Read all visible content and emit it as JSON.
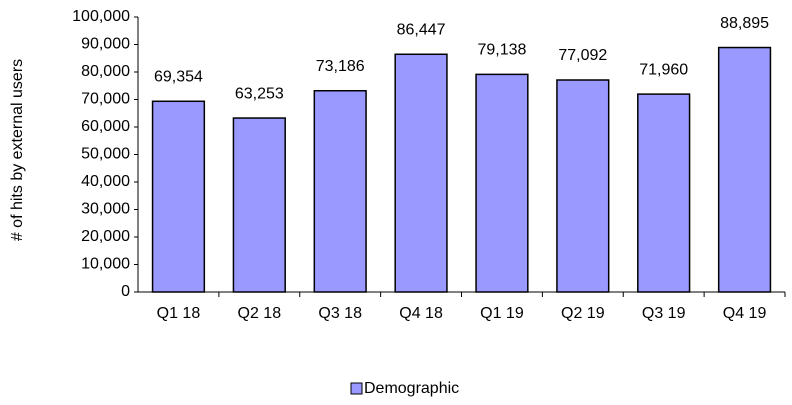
{
  "chart_data": {
    "type": "bar",
    "y_label": "# of hits by external users",
    "categories": [
      "Q1 18",
      "Q2 18",
      "Q3 18",
      "Q4 18",
      "Q1 19",
      "Q2 19",
      "Q3 19",
      "Q4 19"
    ],
    "series": [
      {
        "name": "Demographic",
        "color": "#9999ff",
        "values": [
          69354,
          63253,
          73186,
          86447,
          79138,
          77092,
          71960,
          88895
        ],
        "value_labels": [
          "69,354",
          "63,253",
          "73,186",
          "86,447",
          "79,138",
          "77,092",
          "71,960",
          "88,895"
        ]
      }
    ],
    "ylim": [
      0,
      100000
    ],
    "yticks": [
      0,
      {
        "value": 10000,
        "label": "10,000"
      },
      {
        "value": 20000,
        "label": "20,000"
      },
      {
        "value": 30000,
        "label": "30,000"
      },
      {
        "value": 40000,
        "label": "40,000"
      },
      {
        "value": 50000,
        "label": "50,000"
      },
      {
        "value": 60000,
        "label": "60,000"
      },
      {
        "value": 70000,
        "label": "70,000"
      },
      {
        "value": 80000,
        "label": "80,000"
      },
      {
        "value": 90000,
        "label": "90,000"
      },
      {
        "value": 100000,
        "label": "100,000"
      }
    ],
    "grid": false,
    "legend": "bottom"
  }
}
